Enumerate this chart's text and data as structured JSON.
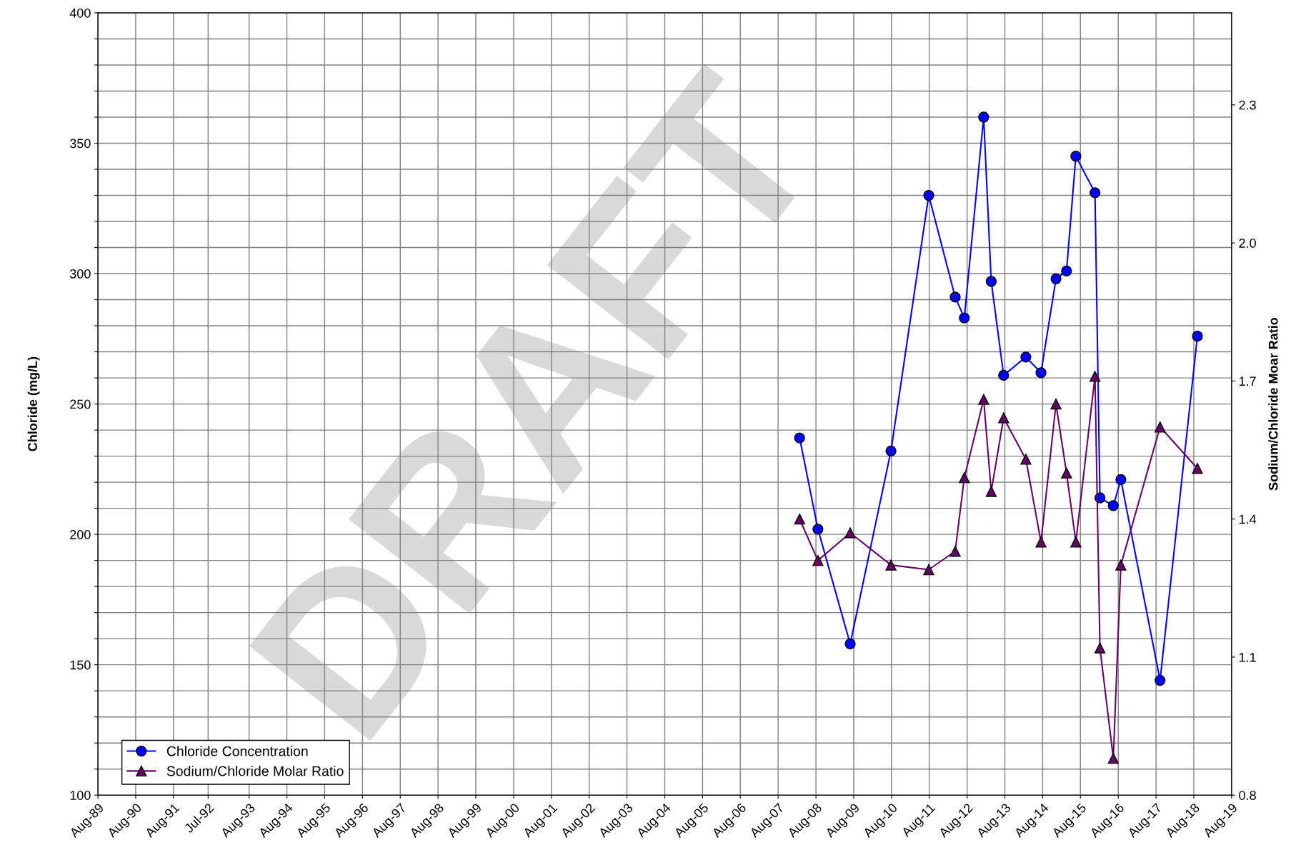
{
  "chart_data": {
    "type": "line",
    "ylabel": "Chloride (mg/L)",
    "y2label": "Sodium/Chloride Moar Ratio",
    "annotations": [
      "DRAFT"
    ],
    "xlim": [
      "1989-08-01",
      "2019-08-01"
    ],
    "xticks": [
      {
        "value": "1989-08-01",
        "label": "Aug-89"
      },
      {
        "value": "1990-08-01",
        "label": "Aug-90"
      },
      {
        "value": "1991-08-01",
        "label": "Aug-91"
      },
      {
        "value": "1992-07-01",
        "label": "Jul-92"
      },
      {
        "value": "1993-08-01",
        "label": "Aug-93"
      },
      {
        "value": "1994-08-01",
        "label": "Aug-94"
      },
      {
        "value": "1995-08-01",
        "label": "Aug-95"
      },
      {
        "value": "1996-08-01",
        "label": "Aug-96"
      },
      {
        "value": "1997-08-01",
        "label": "Aug-97"
      },
      {
        "value": "1998-08-01",
        "label": "Aug-98"
      },
      {
        "value": "1999-08-01",
        "label": "Aug-99"
      },
      {
        "value": "2000-08-01",
        "label": "Aug-00"
      },
      {
        "value": "2001-08-01",
        "label": "Aug-01"
      },
      {
        "value": "2002-08-01",
        "label": "Aug-02"
      },
      {
        "value": "2003-08-01",
        "label": "Aug-03"
      },
      {
        "value": "2004-08-01",
        "label": "Aug-04"
      },
      {
        "value": "2005-08-01",
        "label": "Aug-05"
      },
      {
        "value": "2006-08-01",
        "label": "Aug-06"
      },
      {
        "value": "2007-08-01",
        "label": "Aug-07"
      },
      {
        "value": "2008-08-01",
        "label": "Aug-08"
      },
      {
        "value": "2009-08-01",
        "label": "Aug-09"
      },
      {
        "value": "2010-08-01",
        "label": "Aug-10"
      },
      {
        "value": "2011-08-01",
        "label": "Aug-11"
      },
      {
        "value": "2012-08-01",
        "label": "Aug-12"
      },
      {
        "value": "2013-08-01",
        "label": "Aug-13"
      },
      {
        "value": "2014-08-01",
        "label": "Aug-14"
      },
      {
        "value": "2015-08-01",
        "label": "Aug-15"
      },
      {
        "value": "2016-08-01",
        "label": "Aug-16"
      },
      {
        "value": "2017-08-01",
        "label": "Aug-17"
      },
      {
        "value": "2018-08-01",
        "label": "Aug-18"
      },
      {
        "value": "2019-08-01",
        "label": "Aug-19"
      }
    ],
    "ylim": [
      100,
      400
    ],
    "yticks": [
      100,
      {
        "value": 110,
        "label": null
      },
      {
        "value": 120,
        "label": null
      },
      {
        "value": 130,
        "label": null
      },
      {
        "value": 140,
        "label": null
      },
      150,
      {
        "value": 160,
        "label": null
      },
      {
        "value": 170,
        "label": null
      },
      {
        "value": 180,
        "label": null
      },
      {
        "value": 190,
        "label": null
      },
      200,
      {
        "value": 210,
        "label": null
      },
      {
        "value": 220,
        "label": null
      },
      {
        "value": 230,
        "label": null
      },
      {
        "value": 240,
        "label": null
      },
      250,
      {
        "value": 260,
        "label": null
      },
      {
        "value": 270,
        "label": null
      },
      {
        "value": 280,
        "label": null
      },
      {
        "value": 290,
        "label": null
      },
      300,
      {
        "value": 310,
        "label": null
      },
      {
        "value": 320,
        "label": null
      },
      {
        "value": 330,
        "label": null
      },
      {
        "value": 340,
        "label": null
      },
      350,
      {
        "value": 360,
        "label": null
      },
      {
        "value": 370,
        "label": null
      },
      {
        "value": 380,
        "label": null
      },
      {
        "value": 390,
        "label": null
      },
      400
    ],
    "y2lim": [
      0.8,
      2.5
    ],
    "y2ticks": [
      0.8,
      1.1,
      1.4,
      1.7,
      {
        "value": 2,
        "label": "2.0"
      },
      2.3
    ],
    "grid": true,
    "legend": "bottom left",
    "x": [
      "2008-02-25",
      "2008-08-20",
      "2009-06-28",
      "2010-07-27",
      "2011-07-27",
      "2012-04-08",
      "2012-07-05",
      "2013-01-08",
      "2013-03-22",
      "2013-07-20",
      "2014-02-20",
      "2014-07-16",
      "2014-12-08",
      "2015-03-20",
      "2015-06-18",
      "2015-12-20",
      "2016-02-06",
      "2016-06-14",
      "2016-08-26",
      "2017-09-09",
      "2018-09-05"
    ],
    "series": [
      {
        "name": "Chloride Concentration",
        "color": "#0000ff",
        "marker": "circle",
        "values": [
          237,
          202,
          158,
          232,
          330,
          291,
          283,
          360,
          297,
          261,
          268,
          262,
          298,
          301,
          345,
          331,
          214,
          211,
          221,
          144,
          276
        ]
      },
      {
        "name": "Sodium/Chloride Molar Ratio",
        "color": "#660066",
        "marker": "triangle",
        "axis": "y2",
        "values": [
          1.4,
          1.31,
          1.37,
          1.3,
          1.29,
          1.33,
          1.49,
          1.66,
          1.46,
          1.62,
          1.53,
          1.35,
          1.65,
          1.5,
          1.35,
          1.71,
          1.12,
          0.88,
          1.3,
          1.6,
          1.51
        ]
      }
    ]
  }
}
